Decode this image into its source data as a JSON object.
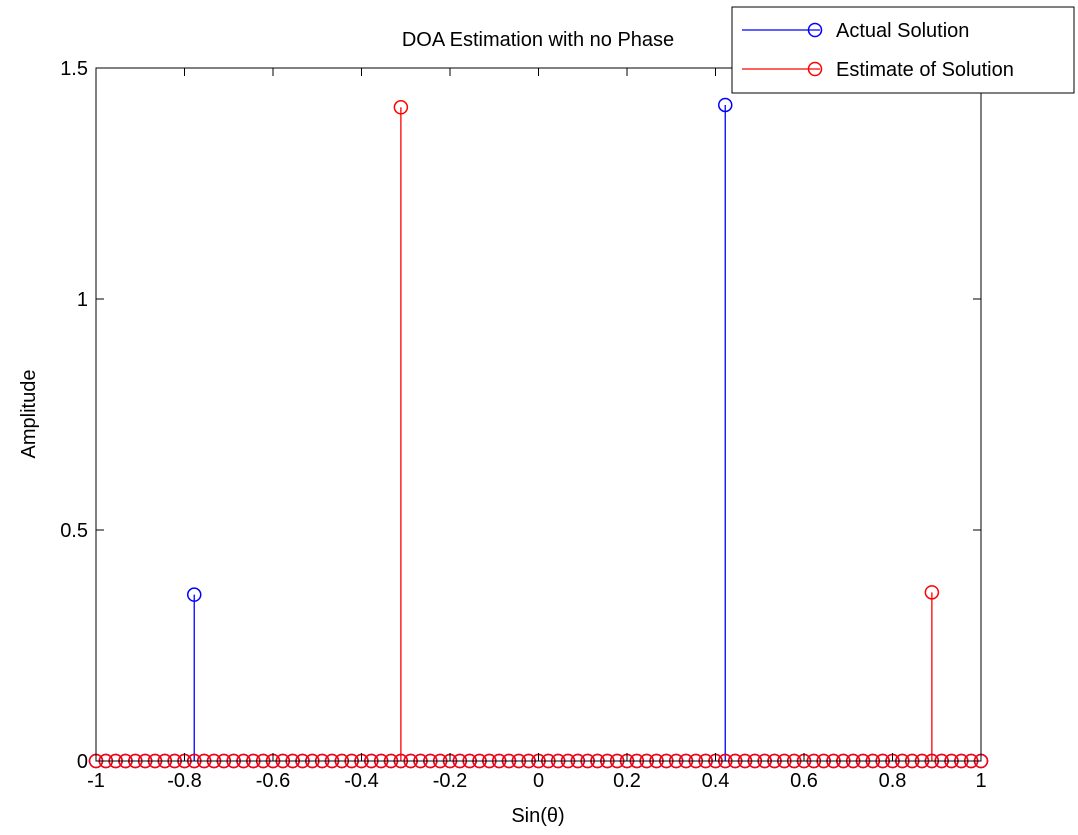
{
  "chart_data": {
    "type": "stem",
    "title": "DOA Estimation with no Phase",
    "xlabel": "Sin(θ)",
    "ylabel": "Amplitude",
    "xlim": [
      -1,
      1
    ],
    "ylim": [
      0,
      1.5
    ],
    "xticks": [
      -1,
      -0.8,
      -0.6,
      -0.4,
      -0.2,
      0,
      0.2,
      0.4,
      0.6,
      0.8,
      1
    ],
    "xtick_labels": [
      "-1",
      "-0.8",
      "-0.6",
      "-0.4",
      "-0.2",
      "0",
      "0.2",
      "0.4",
      "0.6",
      "0.8",
      "1"
    ],
    "yticks": [
      0,
      0.5,
      1,
      1.5
    ],
    "ytick_labels": [
      "0",
      "0.5",
      "1",
      "1.5"
    ],
    "grid": false,
    "legend_position": "top-right",
    "grid_points": 91,
    "series": [
      {
        "name": "Actual Solution",
        "color": "#0000ff",
        "marker": "circle",
        "nonzero": [
          {
            "x": -0.778,
            "y": 0.36
          },
          {
            "x": 0.422,
            "y": 1.42
          }
        ]
      },
      {
        "name": "Estimate of Solution",
        "color": "#ff0000",
        "marker": "circle",
        "nonzero": [
          {
            "x": -0.311,
            "y": 1.415
          },
          {
            "x": 0.889,
            "y": 0.365
          }
        ]
      }
    ]
  }
}
